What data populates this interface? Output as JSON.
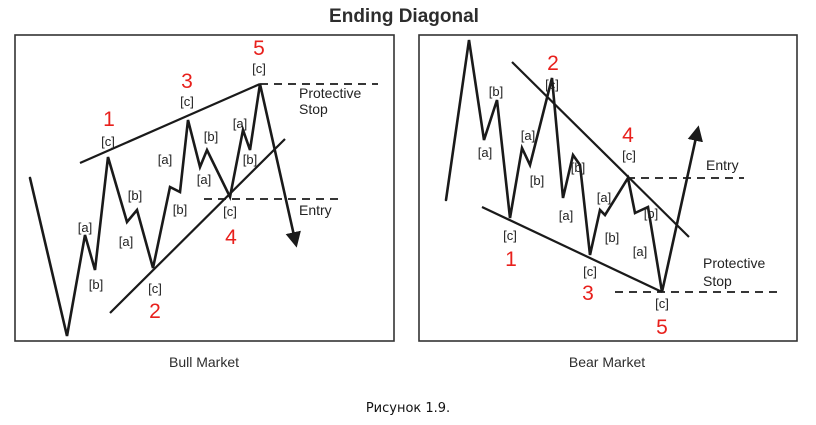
{
  "title": "Ending Diagonal",
  "caption": "Рисунок 1.9.",
  "colors": {
    "wave_number": "#e8201c",
    "line": "#1a1a1a",
    "text": "#222222"
  },
  "bull": {
    "subtitle": "Bull Market",
    "waves": {
      "w1": "1",
      "w2": "2",
      "w3": "3",
      "w4": "4",
      "w5": "5"
    },
    "labels": {
      "w1_c": "[c]",
      "w2_c": "[c]",
      "w3_c": "[c]",
      "w4_c": "[c]",
      "w5_c": "[c]",
      "w1_a": "[a]",
      "w1_b": "[b]",
      "w2_a": "[a]",
      "w2_b": "[b]",
      "w3_a": "[a]",
      "w3_b": "[b]",
      "w4_a": "[a]",
      "w4_b": "[b]",
      "w5_a": "[a]",
      "w5_b": "[b]"
    },
    "stop_line1": "Protective",
    "stop_line2": "Stop",
    "entry": "Entry"
  },
  "bear": {
    "subtitle": "Bear Market",
    "waves": {
      "w1": "1",
      "w2": "2",
      "w3": "3",
      "w4": "4",
      "w5": "5"
    },
    "labels": {
      "w1_c": "[c]",
      "w2_c": "[c]",
      "w3_c": "[c]",
      "w4_c": "[c]",
      "w5_c": "[c]",
      "w1_a": "[a]",
      "w1_b": "[b]",
      "w2_a": "[a]",
      "w2_b": "[b]",
      "w3_a": "[a]",
      "w3_b": "[b]",
      "w4_a": "[a]",
      "w4_b": "[b]",
      "w5_a": "[a]",
      "w5_b": "[b]"
    },
    "stop_line1": "Protective",
    "stop_line2": "Stop",
    "entry": "Entry"
  }
}
